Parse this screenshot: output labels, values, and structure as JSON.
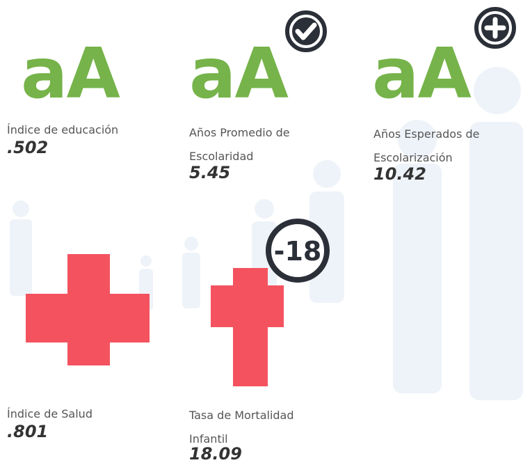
{
  "items": [
    {
      "icon": "aA",
      "label": [
        "Índice de educación"
      ],
      "value": ".502"
    },
    {
      "icon": "aA",
      "label": [
        "Años Promedio de",
        "Escolaridad"
      ],
      "value": "5.45"
    },
    {
      "icon": "aA",
      "label": [
        "Años Esperados de",
        "Escolarización"
      ],
      "value": "10.42"
    },
    {
      "label": [
        "Índice de Salud"
      ],
      "value": ".801"
    },
    {
      "label": [
        "Tasa de Mortalidad",
        "Infantil"
      ],
      "value": "18.09",
      "badge": "-18"
    }
  ]
}
